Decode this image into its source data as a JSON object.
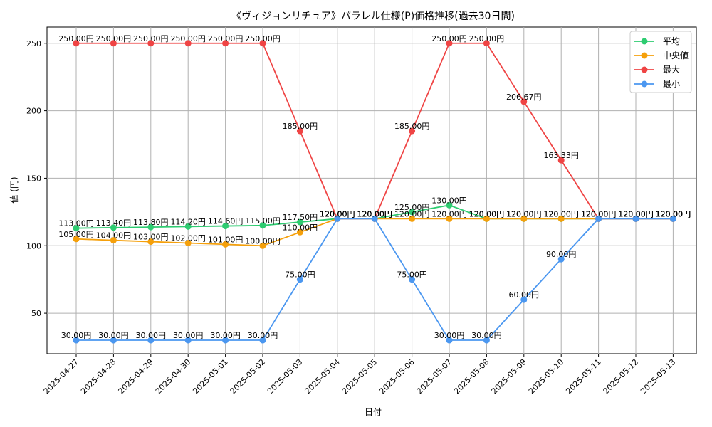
{
  "chart_data": {
    "type": "line",
    "title": "《ヴィジョンリチュア》パラレル仕様(P)価格推移(過去30日間)",
    "xlabel": "日付",
    "ylabel": "値 (円)",
    "ylim": [
      20,
      262
    ],
    "yticks": [
      50,
      100,
      150,
      200,
      250
    ],
    "grid": true,
    "legend_position": "top-right",
    "categories": [
      "2025-04-27",
      "2025-04-28",
      "2025-04-29",
      "2025-04-30",
      "2025-05-01",
      "2025-05-02",
      "2025-05-03",
      "2025-05-04",
      "2025-05-05",
      "2025-05-06",
      "2025-05-07",
      "2025-05-08",
      "2025-05-09",
      "2025-05-10",
      "2025-05-11",
      "2025-05-12",
      "2025-05-13"
    ],
    "series": [
      {
        "name": "平均",
        "color": "#2ecc71",
        "values": [
          113.0,
          113.4,
          113.8,
          114.2,
          114.6,
          115.0,
          117.5,
          120.0,
          120.0,
          125.0,
          130.0,
          120.0,
          120.0,
          120.0,
          120.0,
          120.0,
          120.0
        ],
        "labels": [
          "113.00円",
          "113.40円",
          "113.80円",
          "114.20円",
          "114.60円",
          "115.00円",
          "117.50円",
          "120.00円",
          "120.00円",
          "125.00円",
          "130.00円",
          "120.00円",
          "120.00円",
          "120.00円",
          "120.00円",
          "120.00円",
          "120.00円"
        ]
      },
      {
        "name": "中央値",
        "color": "#f5a00b",
        "values": [
          105.0,
          104.0,
          103.0,
          102.0,
          101.0,
          100.0,
          110.0,
          120.0,
          120.0,
          120.0,
          120.0,
          120.0,
          120.0,
          120.0,
          120.0,
          120.0,
          120.0
        ],
        "labels": [
          "105.00円",
          "104.00円",
          "103.00円",
          "102.00円",
          "101.00円",
          "100.00円",
          "110.00円",
          "120.00円",
          "120.00円",
          "120.00円",
          "120.00円",
          "120.00円",
          "120.00円",
          "120.00円",
          "120.00円",
          "120.00円",
          "120.00円"
        ]
      },
      {
        "name": "最大",
        "color": "#ef4444",
        "values": [
          250.0,
          250.0,
          250.0,
          250.0,
          250.0,
          250.0,
          185.0,
          120.0,
          120.0,
          185.0,
          250.0,
          250.0,
          206.67,
          163.33,
          120.0,
          120.0,
          120.0
        ],
        "labels": [
          "250.00円",
          "250.00円",
          "250.00円",
          "250.00円",
          "250.00円",
          "250.00円",
          "185.00円",
          "120.00円",
          "120.00円",
          "185.00円",
          "250.00円",
          "250.00円",
          "206.67円",
          "163.33円",
          "120.00円",
          "120.00円",
          "120.00円"
        ]
      },
      {
        "name": "最小",
        "color": "#4b97f0",
        "values": [
          30.0,
          30.0,
          30.0,
          30.0,
          30.0,
          30.0,
          75.0,
          120.0,
          120.0,
          75.0,
          30.0,
          30.0,
          60.0,
          90.0,
          120.0,
          120.0,
          120.0
        ],
        "labels": [
          "30.00円",
          "30.00円",
          "30.00円",
          "30.00円",
          "30.00円",
          "30.00円",
          "75.00円",
          "120.00円",
          "120.00円",
          "75.00円",
          "30.00円",
          "30.00円",
          "60.00円",
          "90.00円",
          "120.00円",
          "120.00円",
          "120.00円"
        ]
      }
    ]
  }
}
